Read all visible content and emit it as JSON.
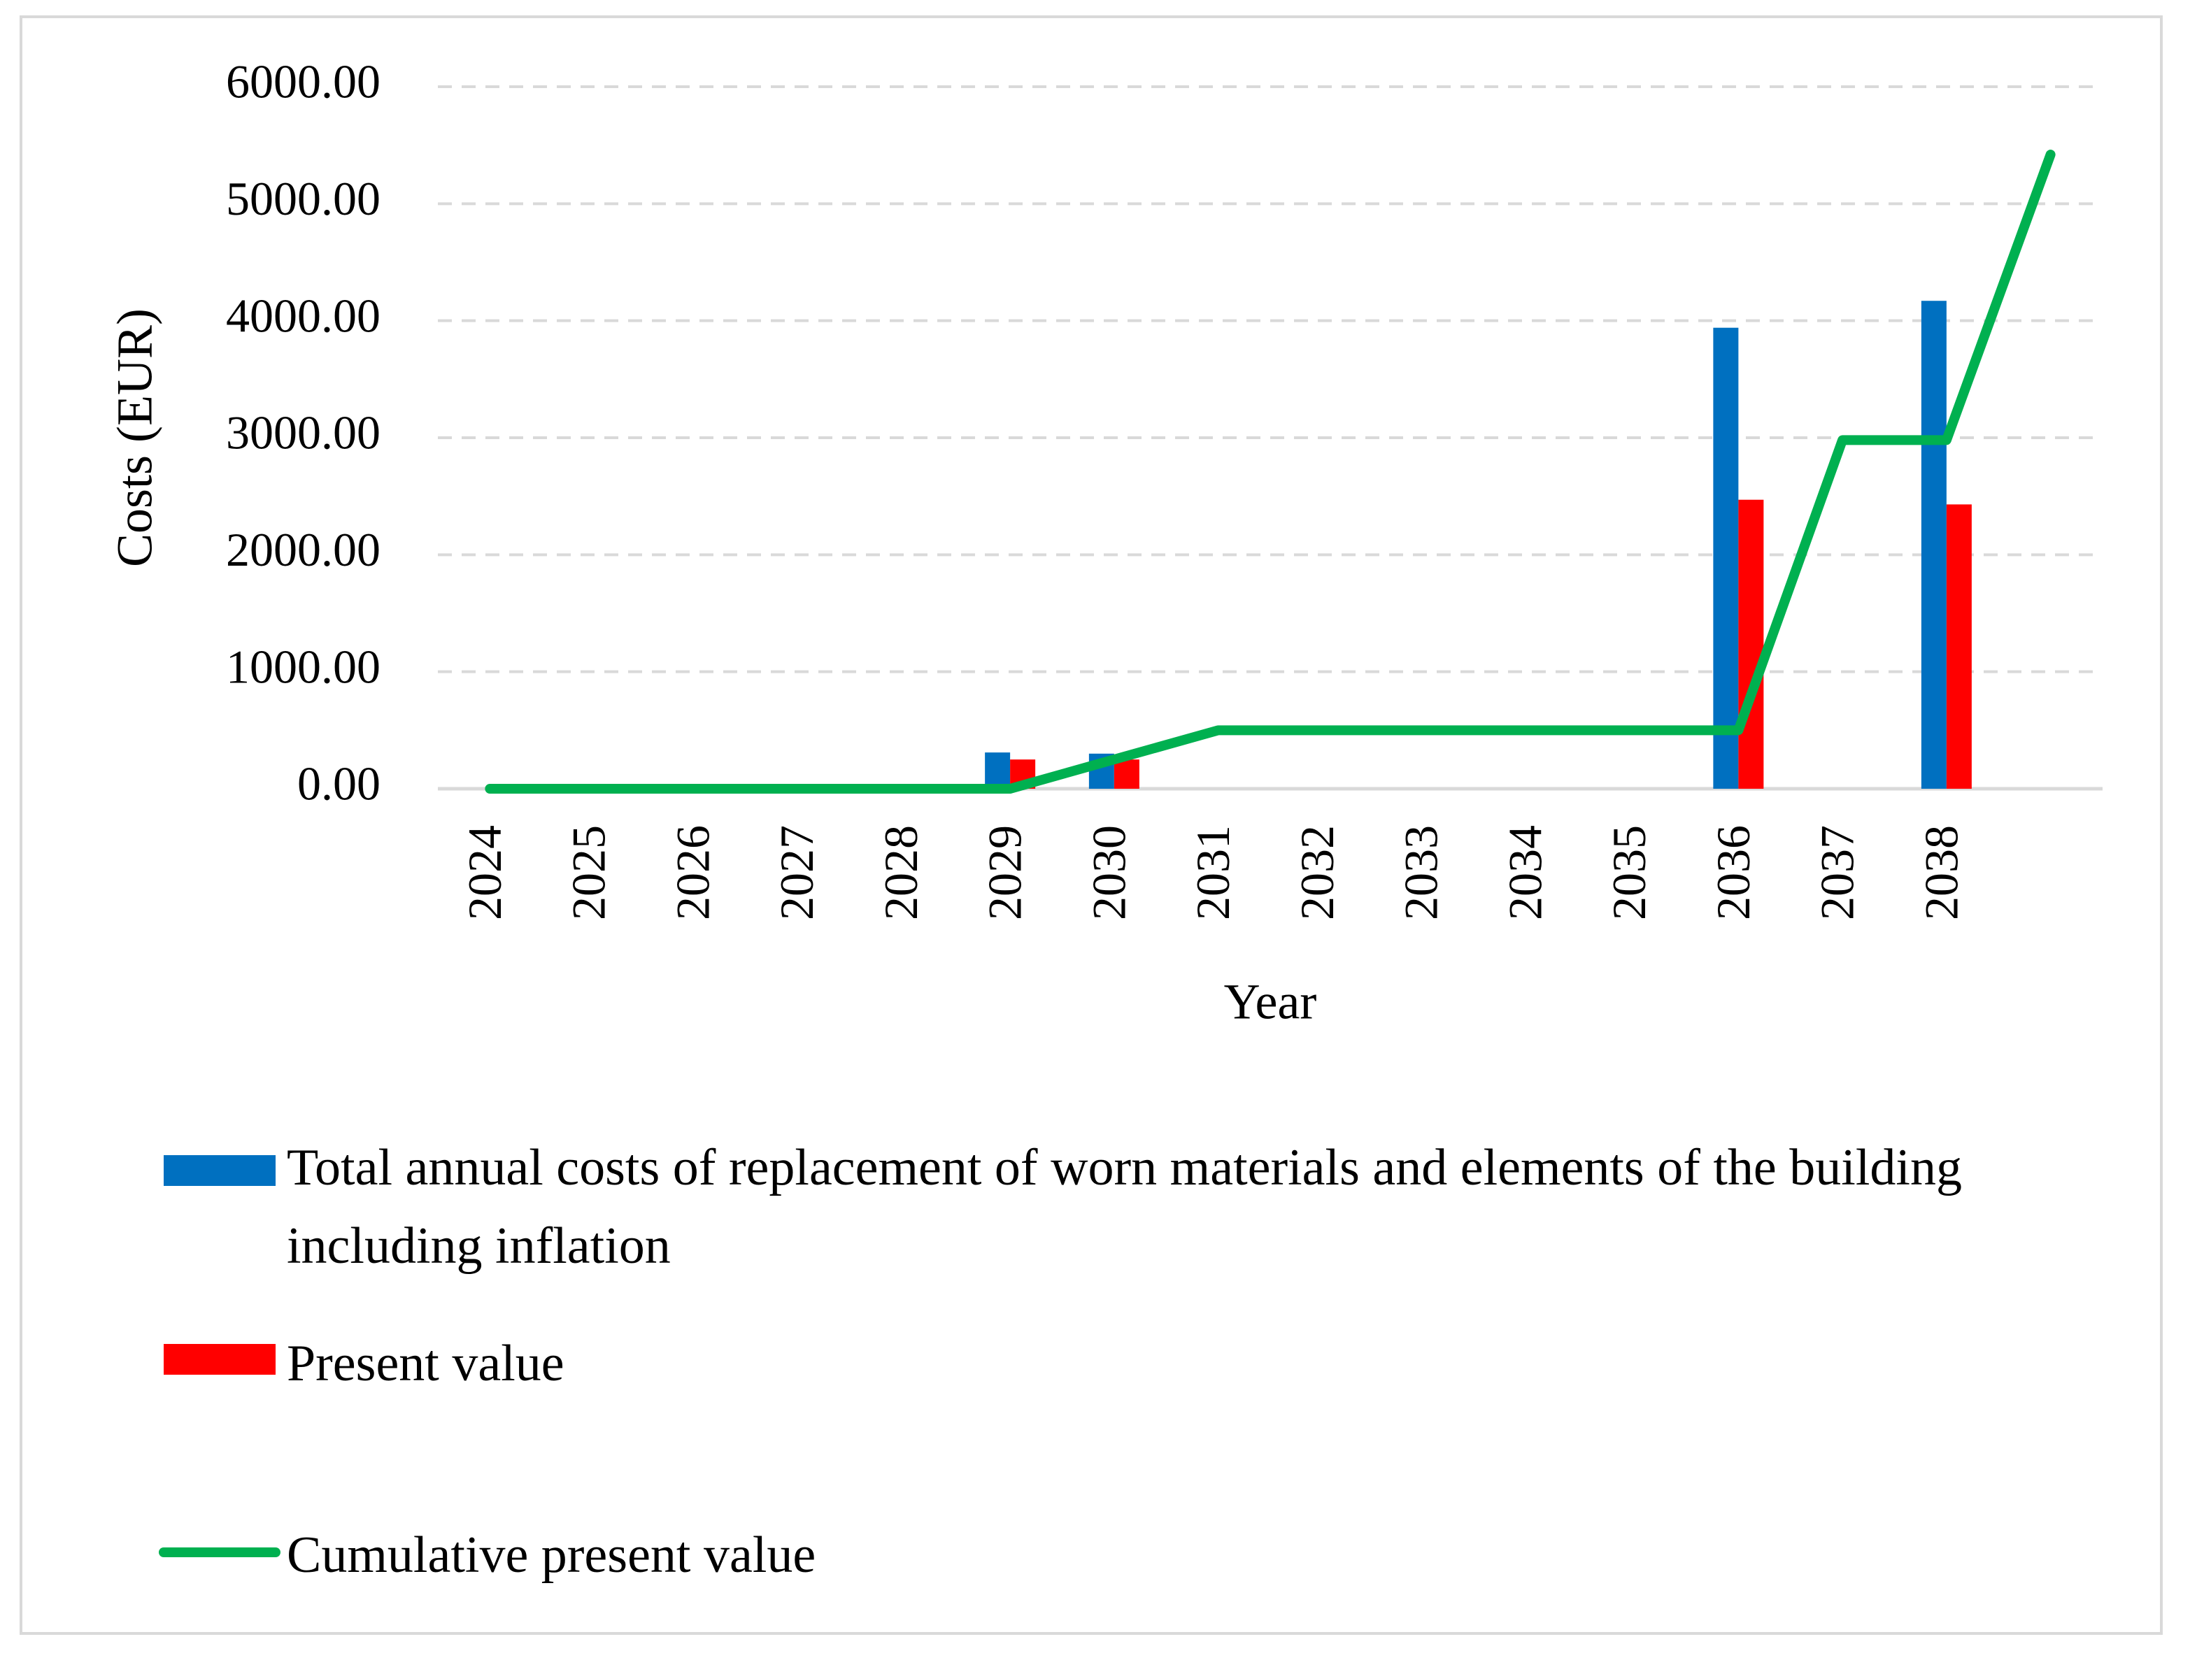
{
  "chart_data": {
    "type": "bar_line",
    "y_axis_label": "Costs (EUR)",
    "x_axis_label": "Year",
    "categories": [
      "2024",
      "2025",
      "2026",
      "2027",
      "2028",
      "2029",
      "2030",
      "2031",
      "2032",
      "2033",
      "2034",
      "2035",
      "2036",
      "2037",
      "2038",
      null
    ],
    "series": [
      {
        "name": "Total annual costs of replacement of worn materials and elements of the building including inflation",
        "color": "#0070c0",
        "kind": "bar",
        "values": [
          0,
          0,
          0,
          0,
          0,
          310,
          300,
          0,
          0,
          0,
          0,
          0,
          3940,
          0,
          4170,
          null
        ]
      },
      {
        "name": "Present value",
        "color": "#ff0000",
        "kind": "bar",
        "values": [
          0,
          0,
          0,
          0,
          0,
          250,
          250,
          0,
          0,
          0,
          0,
          0,
          2470,
          0,
          2430,
          null
        ]
      },
      {
        "name": "Cumulative present value",
        "color": "#00b050",
        "kind": "line",
        "values": [
          0,
          0,
          0,
          0,
          0,
          0,
          250,
          500,
          500,
          500,
          500,
          500,
          500,
          2980,
          2980,
          5420
        ]
      }
    ],
    "ylim": [
      0,
      6000
    ],
    "yticks": [
      {
        "value": 0,
        "label": "0.00"
      },
      {
        "value": 1000,
        "label": "1000.00"
      },
      {
        "value": 2000,
        "label": "2000.00"
      },
      {
        "value": 3000,
        "label": "3000.00"
      },
      {
        "value": 4000,
        "label": "4000.00"
      },
      {
        "value": 5000,
        "label": "5000.00"
      },
      {
        "value": 6000,
        "label": "6000.00"
      }
    ],
    "grid": true,
    "legend": "bottom"
  }
}
